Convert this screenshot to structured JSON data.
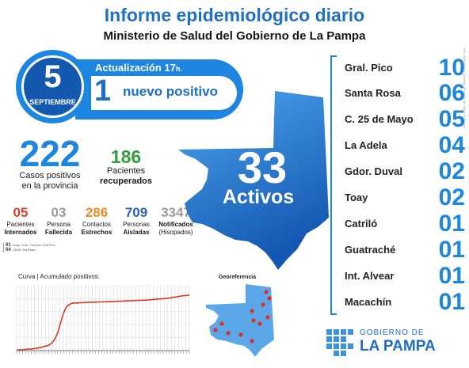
{
  "header": {
    "title": "Informe epidemiológico diario",
    "subtitle": "Ministerio de Salud del Gobierno de La Pampa",
    "side_note": "Gob. Web Redes Sociales. Ministerio de Salud La Pampa"
  },
  "date": {
    "day": "5",
    "month": "SEPTIEMBRE"
  },
  "update": {
    "label": "Actualización 17",
    "suffix": "h.",
    "new_count": "1",
    "new_label": "nuevo positivo"
  },
  "totals": {
    "positives": {
      "value": "222",
      "label_1": "Casos positivos",
      "label_2": "en la provincia"
    },
    "recovered": {
      "value": "186",
      "label_1": "Pacientes",
      "label_2": "recuperados"
    }
  },
  "small_stats": [
    {
      "value": "05",
      "l1": "Pacientes",
      "l2": "Internados",
      "color": "#d9412b"
    },
    {
      "value": "03",
      "l1": "Persona",
      "l2": "Fallecida",
      "color": "#9a9a9a"
    },
    {
      "value": "286",
      "l1": "Contactos",
      "l2": "Estrechos",
      "color": "#ef8a1d"
    },
    {
      "value": "709",
      "l1": "Personas",
      "l2": "Aisladas",
      "color": "#2e62b8"
    },
    {
      "value": "3347",
      "l1": "Notificados",
      "l2": "(Hisopados)",
      "color": "#9a9a9a"
    }
  ],
  "notes": [
    {
      "n": "01",
      "t": "Hosp. Gob. Centeno Gral Pico"
    },
    {
      "n": "04",
      "t": "CEAR Sta Rosa"
    }
  ],
  "map": {
    "value": "33",
    "label": "Activos"
  },
  "cities": [
    {
      "name": "Gral. Pico",
      "value": "10"
    },
    {
      "name": "Santa Rosa",
      "value": "06"
    },
    {
      "name": "C. 25 de Mayo",
      "value": "05"
    },
    {
      "name": "La Adela",
      "value": "04"
    },
    {
      "name": "Gdor. Duval",
      "value": "02"
    },
    {
      "name": "Toay",
      "value": "02"
    },
    {
      "name": "Catriló",
      "value": "01"
    },
    {
      "name": "Guatraché",
      "value": "01"
    },
    {
      "name": "Int. Alvear",
      "value": "01"
    },
    {
      "name": "Macachín",
      "value": "01"
    }
  ],
  "chart_title": "Curva | Acumulado positivos.",
  "chart_data": {
    "type": "line",
    "title": "Curva | Acumulado positivos.",
    "series": [
      {
        "values": [
          2,
          3,
          3,
          5,
          6,
          6,
          8,
          10,
          12,
          15,
          18,
          22,
          30,
          45,
          70,
          110,
          150,
          175,
          185,
          190,
          191,
          191,
          192,
          192,
          193,
          193,
          194,
          194,
          195,
          195,
          195,
          196,
          196,
          197,
          197,
          198,
          198,
          199,
          199,
          200,
          200,
          201,
          201,
          202,
          202,
          203,
          204,
          205,
          206,
          207,
          208,
          209,
          210,
          212,
          214,
          216,
          218,
          220,
          221,
          222
        ]
      }
    ],
    "ylim": [
      0,
      260
    ],
    "grid": true,
    "color": "#d43a2a"
  },
  "geo": {
    "title": "Georeferencia",
    "fill": "#5ba7e8",
    "marker": "#d9312a"
  },
  "logo": {
    "line1": "GOBIERNO DE",
    "line2": "LA PAMPA"
  },
  "colors": {
    "accent": "#1d86e0",
    "accent_dark": "#1459b0",
    "green": "#2f9e3a"
  }
}
